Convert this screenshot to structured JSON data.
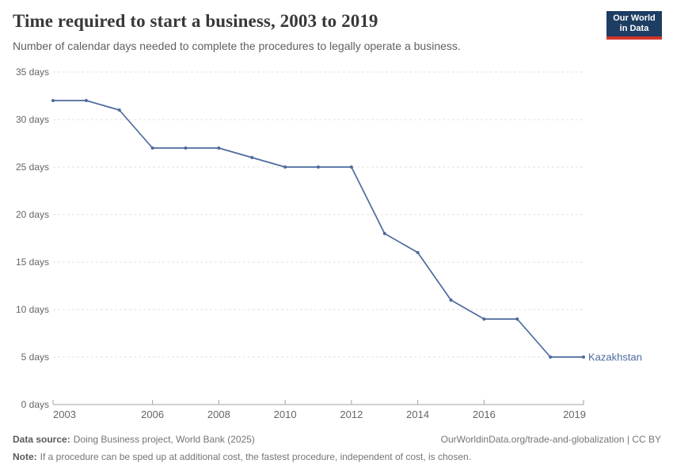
{
  "header": {
    "title": "Time required to start a business, 2003 to 2019",
    "subtitle": "Number of calendar days needed to complete the procedures to legally operate a business.",
    "logo": {
      "line1": "Our World",
      "line2": "in Data"
    }
  },
  "chart_data": {
    "type": "line",
    "title": "Time required to start a business, 2003 to 2019",
    "xlabel": "",
    "ylabel": "days",
    "xlim": [
      2003,
      2019
    ],
    "ylim": [
      0,
      35
    ],
    "grid": "horizontal-dashed",
    "legend_position": "end-of-line-label",
    "x_ticks": [
      "2003",
      "2006",
      "2008",
      "2010",
      "2012",
      "2014",
      "2016",
      "2019"
    ],
    "y_ticks": [
      {
        "value": 0,
        "label": "0 days"
      },
      {
        "value": 5,
        "label": "5 days"
      },
      {
        "value": 10,
        "label": "10 days"
      },
      {
        "value": 15,
        "label": "15 days"
      },
      {
        "value": 20,
        "label": "20 days"
      },
      {
        "value": 25,
        "label": "25 days"
      },
      {
        "value": 30,
        "label": "30 days"
      },
      {
        "value": 35,
        "label": "35 days"
      }
    ],
    "series": [
      {
        "name": "Kazakhstan",
        "color": "#4c6a9c",
        "x": [
          2003,
          2004,
          2005,
          2006,
          2007,
          2008,
          2009,
          2010,
          2011,
          2012,
          2013,
          2014,
          2015,
          2016,
          2017,
          2018,
          2019
        ],
        "values": [
          32,
          32,
          31,
          27,
          27,
          27,
          26,
          25,
          25,
          25,
          18,
          16,
          11,
          9,
          9,
          5,
          5
        ]
      }
    ]
  },
  "footer": {
    "data_source_label": "Data source:",
    "data_source": "Doing Business project, World Bank (2025)",
    "note_label": "Note:",
    "note": "If a procedure can be sped up at additional cost, the fastest procedure, independent of cost, is chosen.",
    "link": "OurWorldinData.org/trade-and-globalization | CC BY"
  },
  "colors": {
    "line": "#4c6a9c",
    "grid": "#e0e0e0",
    "axis": "#a3a3a3",
    "tick_label": "#666666",
    "title": "#383838",
    "logo_bg": "#1d3d63",
    "logo_stripe": "#d1352b"
  }
}
